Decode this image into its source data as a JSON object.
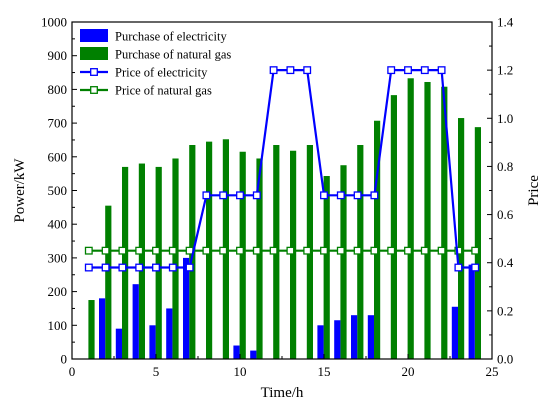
{
  "chart_data": {
    "type": "bar",
    "xlabel": "Time/h",
    "ylabel": "Power/kW",
    "y2label": "Price",
    "xlim": [
      0,
      25
    ],
    "ylim": [
      0,
      1000
    ],
    "y2lim": [
      0,
      1.4
    ],
    "x_ticks": [
      0,
      5,
      10,
      15,
      20,
      25
    ],
    "y_ticks": [
      0,
      100,
      200,
      300,
      400,
      500,
      600,
      700,
      800,
      900,
      1000
    ],
    "y2_ticks": [
      "0.0",
      "0.2",
      "0.4",
      "0.6",
      "0.8",
      "1.0",
      "1.2",
      "1.4"
    ],
    "grid": false,
    "legend_position": "top-left",
    "x": [
      1,
      2,
      3,
      4,
      5,
      6,
      7,
      8,
      9,
      10,
      11,
      12,
      13,
      14,
      15,
      16,
      17,
      18,
      19,
      20,
      21,
      22,
      23,
      24
    ],
    "series": [
      {
        "name": "Purchase of electricity",
        "type": "bar",
        "axis": "left",
        "color": "#0000ff",
        "values": [
          0,
          180,
          90,
          222,
          100,
          150,
          300,
          0,
          0,
          40,
          25,
          0,
          0,
          0,
          100,
          115,
          130,
          130,
          0,
          0,
          0,
          0,
          155,
          280
        ]
      },
      {
        "name": "Purchase of natural gas",
        "type": "bar",
        "axis": "left",
        "color": "#008000",
        "values": [
          175,
          455,
          570,
          580,
          570,
          595,
          635,
          645,
          652,
          615,
          595,
          635,
          618,
          635,
          543,
          575,
          635,
          707,
          783,
          833,
          822,
          808,
          715,
          688
        ]
      },
      {
        "name": "Price of electricity",
        "type": "line",
        "axis": "right",
        "color": "#0000ff",
        "values": [
          0.38,
          0.38,
          0.38,
          0.38,
          0.38,
          0.38,
          0.38,
          0.68,
          0.68,
          0.68,
          0.68,
          1.2,
          1.2,
          1.2,
          0.68,
          0.68,
          0.68,
          0.68,
          1.2,
          1.2,
          1.2,
          1.2,
          0.38,
          0.38
        ]
      },
      {
        "name": "Price of natural gas",
        "type": "line",
        "axis": "right",
        "color": "#008000",
        "values": [
          0.45,
          0.45,
          0.45,
          0.45,
          0.45,
          0.45,
          0.45,
          0.45,
          0.45,
          0.45,
          0.45,
          0.45,
          0.45,
          0.45,
          0.45,
          0.45,
          0.45,
          0.45,
          0.45,
          0.45,
          0.45,
          0.45,
          0.45,
          0.45
        ]
      }
    ]
  }
}
